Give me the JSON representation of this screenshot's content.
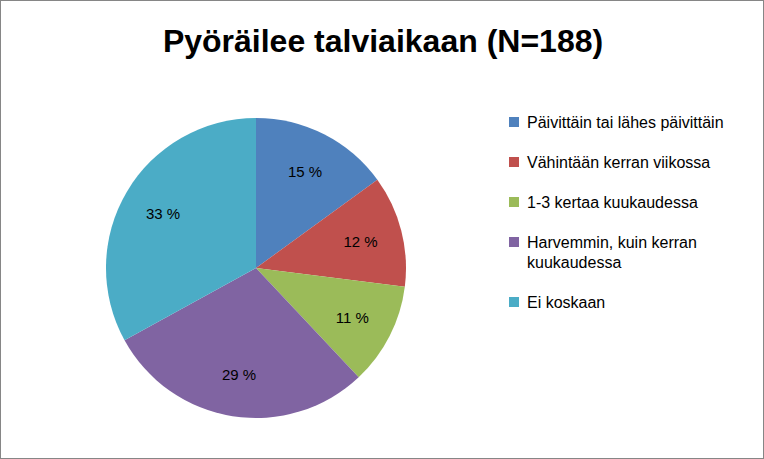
{
  "chart_data": {
    "type": "pie",
    "title": "Pyöräilee talviaikaan (N=188)",
    "categories": [
      "Päivittäin tai lähes päivittäin",
      "Vähintään kerran viikossa",
      "1-3 kertaa kuukaudessa",
      "Harvemmin, kuin kerran kuukaudessa",
      "Ei koskaan"
    ],
    "values": [
      15,
      12,
      11,
      29,
      33
    ],
    "value_labels": [
      "15 %",
      "12 %",
      "11 %",
      "29 %",
      "33 %"
    ],
    "colors": [
      "#4f81bd",
      "#c0504d",
      "#9bbb59",
      "#8064a2",
      "#4bacc6"
    ],
    "data_labels": true,
    "legend": "right"
  }
}
